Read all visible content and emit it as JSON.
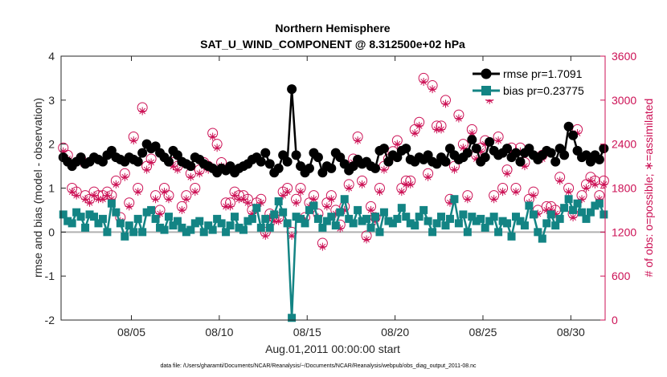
{
  "chart_data": {
    "type": "line",
    "title": "Northern Hemisphere",
    "subtitle": "SAT_U_WIND_COMPONENT @ 8.312500e+02 hPa",
    "xlabel": "Aug.01,2011 00:00:00 start",
    "ylabel": "rmse and bias (model - observation)",
    "y2label": "# of obs: o=possible; ∗=assimilated",
    "footer": "data file: /Users/gharamti/Documents/NCAR/Reanalysis/~/Documents/NCAR/Reanalysis/webpub/obs_diag_output_2011-08.nc",
    "xlim": [
      1,
      31.95
    ],
    "ylim": [
      -2,
      4
    ],
    "y2lim": [
      0,
      3600
    ],
    "x_ticks": [
      5,
      10,
      15,
      20,
      25,
      30
    ],
    "x_tick_labels": [
      "08/05",
      "08/10",
      "08/15",
      "08/20",
      "08/25",
      "08/30"
    ],
    "y_ticks": [
      -2,
      -1,
      0,
      1,
      2,
      3,
      4
    ],
    "y_tick_labels": [
      "-2",
      "-1",
      "0",
      "1",
      "2",
      "3",
      "4"
    ],
    "y2_ticks": [
      0,
      600,
      1200,
      1800,
      2400,
      3000,
      3600
    ],
    "y2_tick_labels": [
      "0",
      "600",
      "1200",
      "1800",
      "2400",
      "3000",
      "3600"
    ],
    "zero_line": 0,
    "legend_position": "top-right",
    "colors": {
      "rmse": "#000000",
      "bias": "#138484",
      "obs": "#cc1155",
      "zero": "#b0b0b0",
      "axis_right": "#cc1155"
    },
    "x": [
      1.125,
      1.375,
      1.625,
      1.875,
      2.125,
      2.375,
      2.625,
      2.875,
      3.125,
      3.375,
      3.625,
      3.875,
      4.125,
      4.375,
      4.625,
      4.875,
      5.125,
      5.375,
      5.625,
      5.875,
      6.125,
      6.375,
      6.625,
      6.875,
      7.125,
      7.375,
      7.625,
      7.875,
      8.125,
      8.375,
      8.625,
      8.875,
      9.125,
      9.375,
      9.625,
      9.875,
      10.125,
      10.375,
      10.625,
      10.875,
      11.125,
      11.375,
      11.625,
      11.875,
      12.125,
      12.375,
      12.625,
      12.875,
      13.125,
      13.375,
      13.625,
      13.875,
      14.125,
      14.375,
      14.625,
      14.875,
      15.125,
      15.375,
      15.625,
      15.875,
      16.125,
      16.375,
      16.625,
      16.875,
      17.125,
      17.375,
      17.625,
      17.875,
      18.125,
      18.375,
      18.625,
      18.875,
      19.125,
      19.375,
      19.625,
      19.875,
      20.125,
      20.375,
      20.625,
      20.875,
      21.125,
      21.375,
      21.625,
      21.875,
      22.125,
      22.375,
      22.625,
      22.875,
      23.125,
      23.375,
      23.625,
      23.875,
      24.125,
      24.375,
      24.625,
      24.875,
      25.125,
      25.375,
      25.625,
      25.875,
      26.125,
      26.375,
      26.625,
      26.875,
      27.125,
      27.375,
      27.625,
      27.875,
      28.125,
      28.375,
      28.625,
      28.875,
      29.125,
      29.375,
      29.625,
      29.875,
      30.125,
      30.375,
      30.625,
      30.875,
      31.125,
      31.375,
      31.625,
      31.875
    ],
    "series": [
      {
        "name": "rmse",
        "legend": "rmse pr=1.7091",
        "marker": "circle",
        "values": [
          1.7,
          1.6,
          1.5,
          1.6,
          1.7,
          1.55,
          1.6,
          1.7,
          1.65,
          1.6,
          1.75,
          1.85,
          1.7,
          1.65,
          1.6,
          1.7,
          1.65,
          1.6,
          1.8,
          2.0,
          1.9,
          1.95,
          1.8,
          1.7,
          1.6,
          1.85,
          1.75,
          1.6,
          1.55,
          1.5,
          1.7,
          1.65,
          1.55,
          1.5,
          1.45,
          1.35,
          1.45,
          1.4,
          1.5,
          1.35,
          1.45,
          1.5,
          1.55,
          1.65,
          1.7,
          1.6,
          1.8,
          1.55,
          1.35,
          1.45,
          1.75,
          1.6,
          3.25,
          1.75,
          1.5,
          1.35,
          1.45,
          1.8,
          1.7,
          1.35,
          1.5,
          1.45,
          1.8,
          1.7,
          1.55,
          1.4,
          1.5,
          1.65,
          1.55,
          1.6,
          1.5,
          1.45,
          1.85,
          1.9,
          1.6,
          1.75,
          1.7,
          1.85,
          1.9,
          1.65,
          1.6,
          1.7,
          1.65,
          1.75,
          1.6,
          1.55,
          1.7,
          1.6,
          1.9,
          1.75,
          1.65,
          1.7,
          1.8,
          2.1,
          1.9,
          1.6,
          1.7,
          2.05,
          1.85,
          1.75,
          1.8,
          1.9,
          1.7,
          1.8,
          1.6,
          1.8,
          1.9,
          1.75,
          1.65,
          1.75,
          1.85,
          1.8,
          1.6,
          1.9,
          1.75,
          2.4,
          2.2,
          1.85,
          1.7,
          1.75,
          1.6,
          1.75,
          1.65,
          1.9
        ]
      },
      {
        "name": "bias",
        "legend": "bias pr=0.23775",
        "marker": "square",
        "values": [
          0.4,
          0.25,
          0.2,
          0.45,
          0.35,
          0.1,
          0.4,
          0.35,
          0.2,
          0.3,
          0.0,
          0.65,
          0.45,
          0.2,
          -0.1,
          0.15,
          0.0,
          0.3,
          0.0,
          0.45,
          0.5,
          0.3,
          0.1,
          0.05,
          0.35,
          0.15,
          0.25,
          0.1,
          0.0,
          0.05,
          0.2,
          0.25,
          0.0,
          0.15,
          0.05,
          0.3,
          0.2,
          0.0,
          0.15,
          0.35,
          0.1,
          0.05,
          0.25,
          0.3,
          0.55,
          0.1,
          0.3,
          0.1,
          0.4,
          0.7,
          0.45,
          0.2,
          -1.95,
          0.35,
          0.3,
          0.2,
          0.5,
          0.6,
          0.3,
          0.1,
          0.25,
          0.35,
          0.15,
          0.45,
          0.75,
          0.3,
          0.2,
          0.5,
          0.25,
          0.3,
          0.1,
          0.35,
          0.0,
          0.45,
          0.25,
          0.2,
          0.3,
          0.55,
          0.35,
          0.2,
          0.15,
          0.35,
          0.5,
          0.25,
          0.0,
          0.2,
          0.35,
          0.15,
          0.3,
          0.75,
          0.2,
          0.4,
          0.0,
          0.35,
          0.25,
          0.3,
          0.1,
          0.25,
          0.35,
          0.0,
          0.25,
          0.2,
          -0.1,
          0.35,
          0.25,
          0.15,
          0.6,
          0.4,
          0.0,
          -0.15,
          0.2,
          0.4,
          0.15,
          0.3,
          0.55,
          0.75,
          0.5,
          0.65,
          0.45,
          0.3,
          0.45,
          0.6,
          0.65,
          0.4
        ]
      }
    ],
    "obs_possible": {
      "name": "possible",
      "marker": "circle-open",
      "values": [
        2350,
        2250,
        1800,
        1750,
        2200,
        1700,
        1650,
        1750,
        1700,
        1700,
        1750,
        1700,
        1900,
        1400,
        2000,
        1600,
        2500,
        1800,
        2900,
        2100,
        2200,
        1700,
        1500,
        1800,
        1700,
        2150,
        2100,
        1550,
        1700,
        2000,
        1800,
        2050,
        2150,
        2100,
        2550,
        2400,
        2150,
        1600,
        1600,
        1750,
        1700,
        1700,
        1650,
        1500,
        1600,
        1650,
        1200,
        1450,
        1400,
        1400,
        1750,
        1800,
        1200,
        1650,
        1800,
        1400,
        1600,
        1700,
        1450,
        1050,
        1600,
        1700,
        1500,
        1300,
        1550,
        1850,
        2200,
        2500,
        1900,
        1150,
        1550,
        1400,
        1800,
        2100,
        2200,
        2300,
        2450,
        1800,
        1900,
        1900,
        2600,
        2700,
        3300,
        2000,
        3200,
        2650,
        2650,
        3000,
        1650,
        2100,
        2800,
        2400,
        1700,
        2600,
        2250,
        2350,
        2450,
        3050,
        1700,
        2500,
        1800,
        2050,
        2350,
        1800,
        2350,
        2150,
        1650,
        1750,
        1500,
        2250,
        1550,
        1550,
        1500,
        1950,
        3300,
        1800,
        1450,
        2600,
        1700,
        1850,
        1950,
        1900,
        1700,
        1900
      ]
    },
    "obs_assimilated": {
      "name": "assimilated",
      "marker": "asterisk",
      "values": [
        2300,
        2200,
        1750,
        1700,
        2150,
        1650,
        1600,
        1700,
        1650,
        1650,
        1700,
        1650,
        1850,
        1350,
        1950,
        1550,
        2450,
        1750,
        2850,
        2050,
        2150,
        1650,
        1450,
        1750,
        1650,
        2100,
        2050,
        1500,
        1650,
        1950,
        1750,
        2000,
        2100,
        2050,
        2500,
        2350,
        2100,
        1550,
        1550,
        1700,
        1650,
        1650,
        1600,
        1450,
        1550,
        1600,
        1150,
        1400,
        1350,
        1350,
        1700,
        1750,
        1150,
        1600,
        1750,
        1350,
        1550,
        1650,
        1400,
        1000,
        1550,
        1650,
        1450,
        1250,
        1500,
        1800,
        2150,
        2450,
        1850,
        1100,
        1500,
        1350,
        1750,
        2050,
        2150,
        2250,
        2400,
        1750,
        1850,
        1850,
        2550,
        2650,
        3250,
        1950,
        3150,
        2600,
        2600,
        2950,
        1600,
        2050,
        2750,
        2350,
        1650,
        2550,
        2200,
        2300,
        2400,
        3000,
        1650,
        2450,
        1750,
        2000,
        2300,
        1750,
        2300,
        2100,
        1600,
        1700,
        1450,
        2200,
        1500,
        1500,
        1450,
        1900,
        3350,
        1750,
        1400,
        2550,
        1650,
        1800,
        1900,
        1850,
        1650,
        1850
      ]
    }
  }
}
